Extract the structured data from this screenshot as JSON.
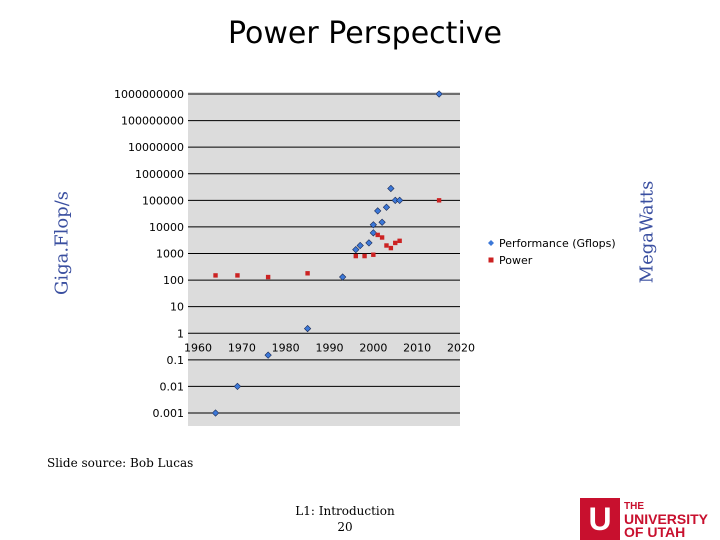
{
  "slide": {
    "title": "Power Perspective",
    "left_axis_label": "Giga.Flop/s",
    "right_axis_label": "MegaWatts",
    "source": "Slide source: Bob Lucas",
    "footer_line1": "L1: Introduction",
    "footer_line2": "20"
  },
  "logo": {
    "mark": "U",
    "line1": "THE",
    "line2": "UNIVERSITY",
    "line3": "OF UTAH",
    "color": "#c8102e"
  },
  "chart_data": {
    "type": "scatter",
    "title": "",
    "xlabel": "",
    "ylabel": "",
    "x_scale": "linear",
    "y_scale": "log",
    "xlim": [
      1960,
      2020
    ],
    "ylim": [
      0.001,
      1000000000
    ],
    "x_ticks": [
      "1960",
      "1970",
      "1980",
      "1990",
      "2000",
      "2010",
      "2020"
    ],
    "y_ticks": [
      "1000000000",
      "100000000",
      "10000000",
      "1000000",
      "100000",
      "10000",
      "1000",
      "100",
      "10",
      "1",
      "0.1",
      "0.01",
      "0.001"
    ],
    "grid": "major horizontal lines",
    "legend_position": "right",
    "plot_background": "#dcdcdc",
    "series": [
      {
        "name": "Performance (Gflops)",
        "color": "#3c78d8",
        "marker": "diamond",
        "points": [
          {
            "x": 1964,
            "y": 0.001
          },
          {
            "x": 1969,
            "y": 0.01
          },
          {
            "x": 1976,
            "y": 0.15
          },
          {
            "x": 1985,
            "y": 1.5
          },
          {
            "x": 1993,
            "y": 130
          },
          {
            "x": 1996,
            "y": 1400
          },
          {
            "x": 1997,
            "y": 2000
          },
          {
            "x": 1999,
            "y": 2500
          },
          {
            "x": 2000,
            "y": 6000
          },
          {
            "x": 2000,
            "y": 12000
          },
          {
            "x": 2001,
            "y": 40000
          },
          {
            "x": 2002,
            "y": 15000
          },
          {
            "x": 2003,
            "y": 55000
          },
          {
            "x": 2004,
            "y": 280000
          },
          {
            "x": 2005,
            "y": 100000
          },
          {
            "x": 2006,
            "y": 100000
          },
          {
            "x": 2015,
            "y": 1000000000
          }
        ]
      },
      {
        "name": "Power",
        "color": "#cc2222",
        "marker": "square",
        "points": [
          {
            "x": 1964,
            "y": 150
          },
          {
            "x": 1969,
            "y": 150
          },
          {
            "x": 1976,
            "y": 130
          },
          {
            "x": 1985,
            "y": 180
          },
          {
            "x": 1996,
            "y": 800
          },
          {
            "x": 1998,
            "y": 800
          },
          {
            "x": 2000,
            "y": 900
          },
          {
            "x": 2001,
            "y": 5000
          },
          {
            "x": 2002,
            "y": 4000
          },
          {
            "x": 2003,
            "y": 2000
          },
          {
            "x": 2004,
            "y": 1600
          },
          {
            "x": 2005,
            "y": 2500
          },
          {
            "x": 2006,
            "y": 3000
          },
          {
            "x": 2015,
            "y": 100000
          }
        ]
      }
    ]
  }
}
